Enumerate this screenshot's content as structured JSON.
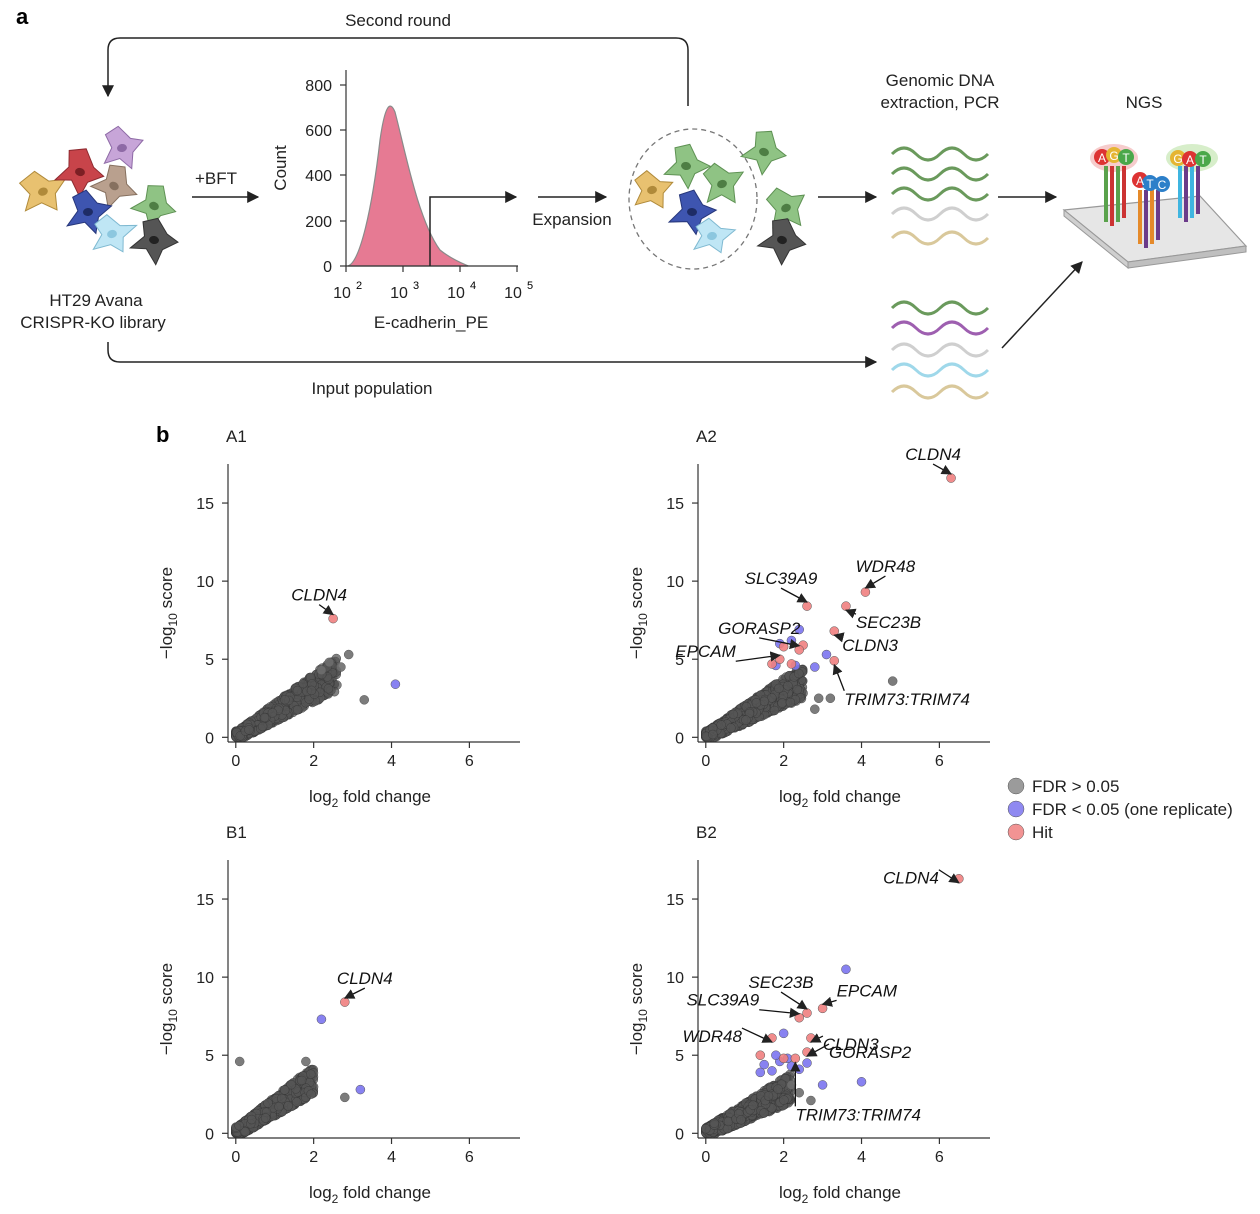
{
  "panel_a": {
    "letter": "a",
    "second_round": "Second round",
    "library_line1": "HT29 Avana",
    "library_line2": "CRISPR-KO library",
    "treatment": "+BFT",
    "expansion": "Expansion",
    "gdna_line1": "Genomic DNA",
    "gdna_line2": "extraction, PCR",
    "ngs": "NGS",
    "input_population": "Input population",
    "histogram": {
      "xlabel": "E-cadherin_PE",
      "ylabel": "Count",
      "yticks": [
        "0",
        "200",
        "400",
        "600",
        "800"
      ],
      "xtick_base": "10",
      "xtick_exponents": [
        "2",
        "3",
        "4",
        "5"
      ],
      "fill_color": "#e67a93"
    },
    "ngs_letters": {
      "red": [
        "A",
        "G",
        "T"
      ],
      "middle": [
        "A",
        "T",
        "C"
      ],
      "right": [
        "G",
        "A",
        "T"
      ]
    }
  },
  "panel_b": {
    "letter": "b",
    "legend": {
      "items": [
        {
          "label": "FDR > 0.05",
          "color": "#8a8a8a"
        },
        {
          "label": "FDR < 0.05 (one replicate)",
          "color": "#7b74ef"
        },
        {
          "label": "Hit",
          "color": "#f08080"
        }
      ]
    },
    "xlabel_main": "log",
    "xlabel_sub": "2",
    "xlabel_rest": " fold change",
    "ylabel_pre": "−log",
    "ylabel_sub": "10",
    "ylabel_rest": " score",
    "xticks": [
      "0",
      "2",
      "4",
      "6"
    ],
    "yticks": [
      "0",
      "5",
      "10",
      "15"
    ]
  },
  "chart_data": [
    {
      "type": "scatter",
      "title": "A1",
      "xlim": [
        -0.2,
        7.3
      ],
      "ylim": [
        -0.3,
        17.5
      ],
      "gray_cloud_extent": {
        "x": [
          0,
          2.6
        ],
        "y": [
          0,
          5.5
        ]
      },
      "series": [
        {
          "name": "FDR > 0.05",
          "color": "#6e6e6e",
          "points": [
            [
              2.7,
              4.5
            ],
            [
              2.9,
              5.3
            ],
            [
              3.3,
              2.4
            ],
            [
              2.2,
              4.3
            ],
            [
              2.4,
              4.8
            ]
          ]
        },
        {
          "name": "FDR < 0.05 (one replicate)",
          "color": "#7b74ef",
          "points": [
            [
              4.1,
              3.4
            ]
          ]
        },
        {
          "name": "Hit",
          "color": "#f08080",
          "points": [
            [
              2.5,
              7.6
            ]
          ]
        }
      ],
      "annotations": [
        {
          "text": "CLDN4",
          "x": 2.5,
          "y": 7.6
        }
      ]
    },
    {
      "type": "scatter",
      "title": "A2",
      "xlim": [
        -0.2,
        7.3
      ],
      "ylim": [
        -0.3,
        17.5
      ],
      "gray_cloud_extent": {
        "x": [
          0,
          2.5
        ],
        "y": [
          0,
          4.8
        ]
      },
      "series": [
        {
          "name": "FDR > 0.05",
          "color": "#6e6e6e",
          "points": [
            [
              4.8,
              3.6
            ],
            [
              3.2,
              2.5
            ],
            [
              2.9,
              2.5
            ],
            [
              2.8,
              1.8
            ]
          ]
        },
        {
          "name": "FDR < 0.05 (one replicate)",
          "color": "#7b74ef",
          "points": [
            [
              1.8,
              4.6
            ],
            [
              2.3,
              4.6
            ],
            [
              2.4,
              6.9
            ],
            [
              2.2,
              6.2
            ],
            [
              1.9,
              6.0
            ],
            [
              2.8,
              4.5
            ],
            [
              3.1,
              5.3
            ]
          ]
        },
        {
          "name": "Hit",
          "color": "#f08080",
          "points": [
            [
              6.3,
              16.6
            ],
            [
              4.1,
              9.3
            ],
            [
              2.6,
              8.4
            ],
            [
              3.6,
              8.4
            ],
            [
              3.3,
              6.8
            ],
            [
              3.3,
              4.9
            ],
            [
              2.0,
              5.8
            ],
            [
              2.5,
              5.9
            ],
            [
              2.4,
              5.6
            ],
            [
              1.9,
              5.0
            ],
            [
              2.2,
              4.7
            ],
            [
              1.7,
              4.7
            ]
          ]
        }
      ],
      "annotations": [
        {
          "text": "CLDN4",
          "x": 6.3,
          "y": 16.6
        },
        {
          "text": "WDR48",
          "x": 4.1,
          "y": 9.3
        },
        {
          "text": "SLC39A9",
          "x": 2.6,
          "y": 8.4
        },
        {
          "text": "SEC23B",
          "x": 3.6,
          "y": 8.4
        },
        {
          "text": "GORASP2",
          "x": 2.4,
          "y": 5.6
        },
        {
          "text": "CLDN3",
          "x": 3.3,
          "y": 6.8
        },
        {
          "text": "EPCAM",
          "x": 1.9,
          "y": 5.0
        },
        {
          "text": "TRIM73:TRIM74",
          "x": 3.3,
          "y": 4.9
        }
      ]
    },
    {
      "type": "scatter",
      "title": "B1",
      "xlim": [
        -0.2,
        7.3
      ],
      "ylim": [
        -0.3,
        17.5
      ],
      "gray_cloud_extent": {
        "x": [
          0,
          2.0
        ],
        "y": [
          0,
          4.6
        ]
      },
      "series": [
        {
          "name": "FDR > 0.05",
          "color": "#6e6e6e",
          "points": [
            [
              2.8,
              2.3
            ],
            [
              0.1,
              4.6
            ],
            [
              1.8,
              4.6
            ]
          ]
        },
        {
          "name": "FDR < 0.05 (one replicate)",
          "color": "#7b74ef",
          "points": [
            [
              2.2,
              7.3
            ],
            [
              3.2,
              2.8
            ]
          ]
        },
        {
          "name": "Hit",
          "color": "#f08080",
          "points": [
            [
              2.8,
              8.4
            ]
          ]
        }
      ],
      "annotations": [
        {
          "text": "CLDN4",
          "x": 2.8,
          "y": 8.4
        }
      ]
    },
    {
      "type": "scatter",
      "title": "B2",
      "xlim": [
        -0.2,
        7.3
      ],
      "ylim": [
        -0.3,
        17.5
      ],
      "gray_cloud_extent": {
        "x": [
          0,
          2.2
        ],
        "y": [
          0,
          3.9
        ]
      },
      "series": [
        {
          "name": "FDR > 0.05",
          "color": "#6e6e6e",
          "points": [
            [
              2.7,
              2.1
            ],
            [
              2.4,
              2.6
            ],
            [
              2.2,
              3.1
            ]
          ]
        },
        {
          "name": "FDR < 0.05 (one replicate)",
          "color": "#7b74ef",
          "points": [
            [
              3.6,
              10.5
            ],
            [
              2.0,
              6.4
            ],
            [
              4.0,
              3.3
            ],
            [
              3.0,
              3.1
            ],
            [
              1.5,
              4.4
            ],
            [
              1.9,
              4.6
            ],
            [
              2.2,
              4.3
            ],
            [
              2.4,
              4.1
            ],
            [
              1.7,
              4.0
            ],
            [
              2.6,
              4.5
            ],
            [
              1.4,
              3.9
            ],
            [
              2.1,
              4.8
            ],
            [
              1.8,
              5.0
            ]
          ]
        },
        {
          "name": "Hit",
          "color": "#f08080",
          "points": [
            [
              6.5,
              16.3
            ],
            [
              3.0,
              8.0
            ],
            [
              2.6,
              7.7
            ],
            [
              2.4,
              7.4
            ],
            [
              2.7,
              6.1
            ],
            [
              2.6,
              5.2
            ],
            [
              1.7,
              6.1
            ],
            [
              1.4,
              5.0
            ],
            [
              2.0,
              4.8
            ],
            [
              2.3,
              4.8
            ]
          ]
        }
      ],
      "annotations": [
        {
          "text": "CLDN4",
          "x": 6.5,
          "y": 16.3
        },
        {
          "text": "SEC23B",
          "x": 2.6,
          "y": 7.7
        },
        {
          "text": "EPCAM",
          "x": 3.0,
          "y": 8.0
        },
        {
          "text": "SLC39A9",
          "x": 2.4,
          "y": 7.4
        },
        {
          "text": "CLDN3",
          "x": 2.7,
          "y": 6.1
        },
        {
          "text": "WDR48",
          "x": 1.7,
          "y": 6.1
        },
        {
          "text": "GORASP2",
          "x": 2.6,
          "y": 5.2
        },
        {
          "text": "TRIM73:TRIM74",
          "x": 2.3,
          "y": 4.8
        }
      ]
    }
  ]
}
